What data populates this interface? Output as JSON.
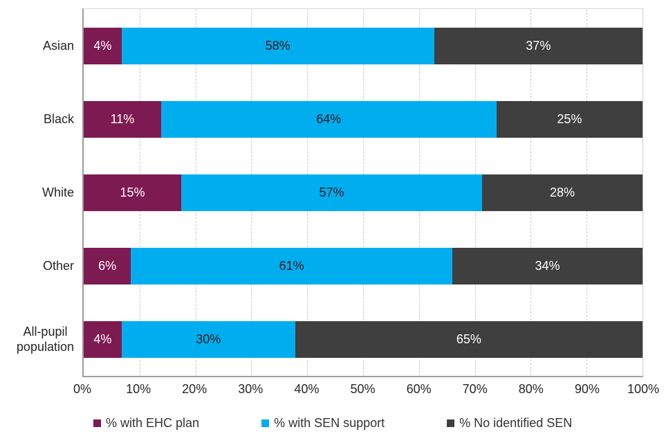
{
  "chart_data": {
    "type": "bar",
    "orientation": "horizontal-stacked",
    "title": "",
    "categories": [
      "Asian",
      "Black",
      "White",
      "Other",
      "All-pupil population"
    ],
    "series": [
      {
        "name": "% with EHC plan",
        "color": "#7E1A52",
        "label_color": "#FFFFFF",
        "values": [
          4,
          11,
          15,
          6,
          4
        ]
      },
      {
        "name": "% with SEN support",
        "color": "#00AEEF",
        "label_color": "#1A1A1A",
        "values": [
          58,
          64,
          57,
          61,
          30
        ]
      },
      {
        "name": "% No identified SEN",
        "color": "#3F3F3F",
        "label_color": "#FFFFFF",
        "values": [
          37,
          25,
          28,
          34,
          65
        ]
      }
    ],
    "value_suffix": "%",
    "x_ticks": [
      "0%",
      "10%",
      "20%",
      "30%",
      "40%",
      "50%",
      "60%",
      "70%",
      "80%",
      "90%",
      "100%"
    ],
    "xlim": [
      0,
      100
    ],
    "grid": "vertical-dashed",
    "gridline_color": "#C9C9C9",
    "legend_position": "bottom"
  }
}
